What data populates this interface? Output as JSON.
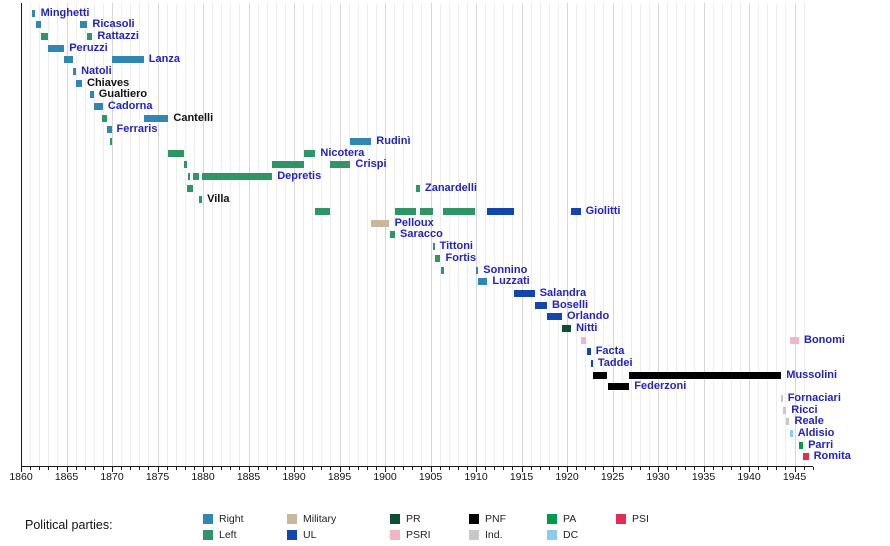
{
  "chart_data": {
    "type": "bar",
    "variant": "gantt-timeline",
    "title": "",
    "xlabel": "",
    "ylabel": "",
    "xlim": [
      1860,
      1947
    ],
    "x_tick_labels": [
      1860,
      1865,
      1870,
      1875,
      1880,
      1885,
      1890,
      1895,
      1900,
      1905,
      1910,
      1915,
      1920,
      1925,
      1930,
      1935,
      1940,
      1945
    ],
    "minor_tick_interval": 1,
    "grid": "vertical-yearly",
    "legend_position": "bottom",
    "party_colors": {
      "Right": "#2f87b2",
      "Left": "#2f9466",
      "Military": "#c8b89b",
      "UL": "#1246ad",
      "PR": "#0c4f33",
      "PSRI": "#f5b4c6",
      "PNF": "#000000",
      "Ind.": "#c8c8c8",
      "PA": "#009a4e",
      "DC": "#8accee",
      "PSI": "#e32c54"
    },
    "label_colors": {
      "link": "#2323c3",
      "plain": "#111111"
    },
    "rows": [
      {
        "name": "Minghetti",
        "link": true,
        "segments": [
          {
            "party": "Right",
            "start": 1861.2,
            "end": 1861.6
          }
        ]
      },
      {
        "name": "Ricasoli",
        "link": true,
        "segments": [
          {
            "party": "Right",
            "start": 1861.6,
            "end": 1862.2
          },
          {
            "party": "Right",
            "start": 1866.5,
            "end": 1867.3
          }
        ]
      },
      {
        "name": "Rattazzi",
        "link": true,
        "segments": [
          {
            "party": "Left",
            "start": 1862.2,
            "end": 1862.95
          },
          {
            "party": "Left",
            "start": 1867.3,
            "end": 1867.85
          }
        ]
      },
      {
        "name": "Peruzzi",
        "link": true,
        "segments": [
          {
            "party": "Right",
            "start": 1862.95,
            "end": 1864.75
          }
        ]
      },
      {
        "name": "Lanza",
        "link": true,
        "segments": [
          {
            "party": "Right",
            "start": 1864.75,
            "end": 1865.7
          },
          {
            "party": "Right",
            "start": 1869.95,
            "end": 1873.5
          }
        ]
      },
      {
        "name": "Natoli",
        "link": true,
        "segments": [
          {
            "party": "Right",
            "start": 1865.7,
            "end": 1866.05
          }
        ]
      },
      {
        "name": "Chiaves",
        "link": false,
        "segments": [
          {
            "party": "Right",
            "start": 1866.05,
            "end": 1866.7
          }
        ]
      },
      {
        "name": "Gualtiero",
        "link": false,
        "segments": [
          {
            "party": "Right",
            "start": 1867.6,
            "end": 1868.0
          }
        ]
      },
      {
        "name": "Cadorna",
        "link": true,
        "segments": [
          {
            "party": "Right",
            "start": 1868.0,
            "end": 1869.0
          }
        ]
      },
      {
        "name": "Cantelli",
        "link": false,
        "segments": [
          {
            "party": "Left",
            "start": 1868.85,
            "end": 1869.45
          },
          {
            "party": "Right",
            "start": 1873.5,
            "end": 1876.2
          }
        ]
      },
      {
        "name": "Ferraris",
        "link": true,
        "segments": [
          {
            "party": "Right",
            "start": 1869.4,
            "end": 1869.95
          }
        ]
      },
      {
        "name": "Rudinì",
        "link": true,
        "segments": [
          {
            "party": "Left",
            "start": 1869.75,
            "end": 1870.0
          },
          {
            "party": "Right",
            "start": 1896.2,
            "end": 1898.5
          }
        ]
      },
      {
        "name": "Nicotera",
        "link": true,
        "segments": [
          {
            "party": "Left",
            "start": 1876.2,
            "end": 1877.95
          },
          {
            "party": "Left",
            "start": 1891.1,
            "end": 1892.35
          }
        ]
      },
      {
        "name": "Crispi",
        "link": true,
        "segments": [
          {
            "party": "Left",
            "start": 1877.95,
            "end": 1878.25
          },
          {
            "party": "Left",
            "start": 1887.6,
            "end": 1891.1
          },
          {
            "party": "Left",
            "start": 1893.95,
            "end": 1896.2
          }
        ]
      },
      {
        "name": "Depretis",
        "link": true,
        "segments": [
          {
            "party": "Left",
            "start": 1878.3,
            "end": 1878.55
          },
          {
            "party": "Left",
            "start": 1878.95,
            "end": 1879.55
          },
          {
            "party": "Left",
            "start": 1879.9,
            "end": 1887.6
          }
        ]
      },
      {
        "name": "Zanardelli",
        "link": true,
        "segments": [
          {
            "party": "Left",
            "start": 1878.25,
            "end": 1878.95
          },
          {
            "party": "Left",
            "start": 1903.45,
            "end": 1903.85
          }
        ]
      },
      {
        "name": "Villa",
        "link": false,
        "segments": [
          {
            "party": "Left",
            "start": 1879.55,
            "end": 1879.9
          }
        ]
      },
      {
        "name": "Giolitti",
        "link": true,
        "segments": [
          {
            "party": "Left",
            "start": 1892.35,
            "end": 1893.95
          },
          {
            "party": "Left",
            "start": 1901.1,
            "end": 1903.45
          },
          {
            "party": "Left",
            "start": 1903.85,
            "end": 1905.25
          },
          {
            "party": "Left",
            "start": 1906.4,
            "end": 1909.95
          },
          {
            "party": "UL",
            "start": 1911.25,
            "end": 1914.2
          },
          {
            "party": "UL",
            "start": 1920.45,
            "end": 1921.5
          }
        ]
      },
      {
        "name": "Pelloux",
        "link": true,
        "segments": [
          {
            "party": "Military",
            "start": 1898.5,
            "end": 1900.5
          }
        ]
      },
      {
        "name": "Saracco",
        "link": true,
        "segments": [
          {
            "party": "Left",
            "start": 1900.5,
            "end": 1901.1
          }
        ]
      },
      {
        "name": "Tittoni",
        "link": true,
        "segments": [
          {
            "party": "Right",
            "start": 1905.25,
            "end": 1905.45
          }
        ]
      },
      {
        "name": "Fortis",
        "link": true,
        "segments": [
          {
            "party": "Left",
            "start": 1905.45,
            "end": 1906.1
          }
        ]
      },
      {
        "name": "Sonnino",
        "link": true,
        "segments": [
          {
            "party": "Right",
            "start": 1906.1,
            "end": 1906.45
          },
          {
            "party": "Right",
            "start": 1909.95,
            "end": 1910.25
          }
        ]
      },
      {
        "name": "Luzzati",
        "link": true,
        "segments": [
          {
            "party": "Right",
            "start": 1910.25,
            "end": 1911.25
          }
        ]
      },
      {
        "name": "Salandra",
        "link": true,
        "segments": [
          {
            "party": "UL",
            "start": 1914.2,
            "end": 1916.45
          }
        ]
      },
      {
        "name": "Boselli",
        "link": true,
        "segments": [
          {
            "party": "UL",
            "start": 1916.45,
            "end": 1917.8
          }
        ]
      },
      {
        "name": "Orlando",
        "link": true,
        "segments": [
          {
            "party": "UL",
            "start": 1917.8,
            "end": 1919.45
          }
        ]
      },
      {
        "name": "Nitti",
        "link": true,
        "segments": [
          {
            "party": "PR",
            "start": 1919.45,
            "end": 1920.45
          }
        ]
      },
      {
        "name": "Bonomi",
        "link": true,
        "segments": [
          {
            "party": "PSRI",
            "start": 1921.5,
            "end": 1922.15
          },
          {
            "party": "PSRI",
            "start": 1944.45,
            "end": 1945.5
          }
        ]
      },
      {
        "name": "Facta",
        "link": true,
        "segments": [
          {
            "party": "UL",
            "start": 1922.15,
            "end": 1922.6
          }
        ]
      },
      {
        "name": "Taddei",
        "link": true,
        "segments": [
          {
            "party": "UL",
            "start": 1922.6,
            "end": 1922.85
          }
        ]
      },
      {
        "name": "Mussolini",
        "link": true,
        "segments": [
          {
            "party": "PNF",
            "start": 1922.85,
            "end": 1924.45
          },
          {
            "party": "PNF",
            "start": 1926.85,
            "end": 1943.55
          }
        ]
      },
      {
        "name": "Federzoni",
        "link": true,
        "segments": [
          {
            "party": "PNF",
            "start": 1924.45,
            "end": 1926.85
          }
        ]
      },
      {
        "name": "Fornaciari",
        "link": true,
        "segments": [
          {
            "party": "Ind.",
            "start": 1943.55,
            "end": 1943.7
          }
        ]
      },
      {
        "name": "Ricci",
        "link": true,
        "segments": [
          {
            "party": "Ind.",
            "start": 1943.7,
            "end": 1944.1
          }
        ]
      },
      {
        "name": "Reale",
        "link": true,
        "segments": [
          {
            "party": "Ind.",
            "start": 1944.1,
            "end": 1944.45
          }
        ]
      },
      {
        "name": "Aldisio",
        "link": true,
        "segments": [
          {
            "party": "DC",
            "start": 1944.45,
            "end": 1944.8
          }
        ]
      },
      {
        "name": "Parri",
        "link": true,
        "segments": [
          {
            "party": "PA",
            "start": 1945.5,
            "end": 1945.95
          }
        ]
      },
      {
        "name": "Romita",
        "link": true,
        "segments": [
          {
            "party": "PSI",
            "start": 1945.95,
            "end": 1946.55
          }
        ]
      }
    ],
    "legend": {
      "title": "Political parties:",
      "items": [
        {
          "label": "Right",
          "party": "Right"
        },
        {
          "label": "Left",
          "party": "Left"
        },
        {
          "label": "Military",
          "party": "Military"
        },
        {
          "label": "UL",
          "party": "UL"
        },
        {
          "label": "PR",
          "party": "PR"
        },
        {
          "label": "PSRI",
          "party": "PSRI"
        },
        {
          "label": "PNF",
          "party": "PNF"
        },
        {
          "label": "Ind.",
          "party": "Ind."
        },
        {
          "label": "PA",
          "party": "PA"
        },
        {
          "label": "DC",
          "party": "DC"
        },
        {
          "label": "PSI",
          "party": "PSI"
        }
      ]
    }
  }
}
